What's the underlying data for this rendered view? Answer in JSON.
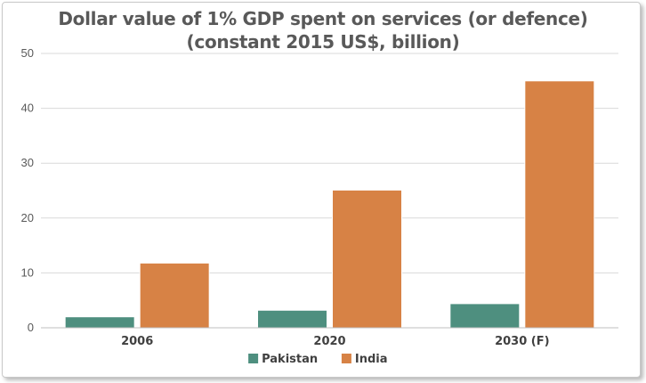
{
  "chart_data": {
    "type": "bar",
    "title_line1": "Dollar value of 1% GDP spent on services (or defence)",
    "title_line2": "(constant 2015 US$, billion)",
    "categories": [
      "2006",
      "2020",
      "2030 (F)"
    ],
    "series": [
      {
        "name": "Pakistan",
        "color": "#4e8f7f",
        "values": [
          2.0,
          3.2,
          4.4
        ]
      },
      {
        "name": "India",
        "color": "#d78245",
        "values": [
          11.8,
          25.1,
          45.0
        ]
      }
    ],
    "ylim": [
      0,
      50
    ],
    "yticks": [
      0,
      10,
      20,
      30,
      40,
      50
    ],
    "grid": true,
    "legend": "bottom"
  }
}
